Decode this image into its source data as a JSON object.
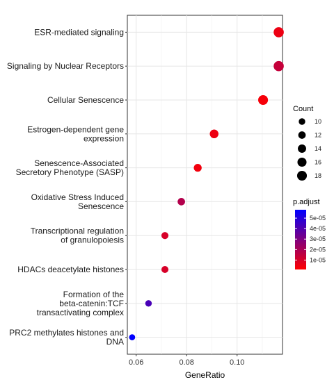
{
  "chart_data": {
    "type": "scatter",
    "xlabel": "GeneRatio",
    "xlim": [
      0.0565,
      0.118
    ],
    "xticks": [
      0.06,
      0.08,
      0.1
    ],
    "xtick_labels": [
      "0.06",
      "0.08",
      "0.10"
    ],
    "grid": true,
    "legend_position": "right",
    "categories": [
      {
        "lines": [
          "ESR-mediated signaling"
        ],
        "x": 0.1165,
        "count": 19,
        "p_adjust": 5e-06
      },
      {
        "lines": [
          "Signaling by Nuclear Receptors"
        ],
        "x": 0.1165,
        "count": 19,
        "p_adjust": 1.4e-05
      },
      {
        "lines": [
          "Cellular Senescence"
        ],
        "x": 0.1103,
        "count": 18,
        "p_adjust": 3e-06
      },
      {
        "lines": [
          "Estrogen-dependent gene",
          "expression"
        ],
        "x": 0.0909,
        "count": 15,
        "p_adjust": 5e-06
      },
      {
        "lines": [
          "Senescence-Associated",
          "Secretory Phenotype (SASP)"
        ],
        "x": 0.0844,
        "count": 13,
        "p_adjust": 4e-06
      },
      {
        "lines": [
          "Oxidative Stress Induced",
          "Senescence"
        ],
        "x": 0.0779,
        "count": 12,
        "p_adjust": 1.8e-05
      },
      {
        "lines": [
          "Transcriptional regulation",
          "of granulopoiesis"
        ],
        "x": 0.0714,
        "count": 11,
        "p_adjust": 1e-05
      },
      {
        "lines": [
          "HDACs deacetylate histones"
        ],
        "x": 0.0714,
        "count": 11,
        "p_adjust": 1e-05
      },
      {
        "lines": [
          "Formation of the",
          "beta-catenin:TCF",
          "transactivating complex"
        ],
        "x": 0.0649,
        "count": 10,
        "p_adjust": 4.2e-05
      },
      {
        "lines": [
          "PRC2 methylates histones and",
          "DNA"
        ],
        "x": 0.0584,
        "count": 9,
        "p_adjust": 5.8e-05
      }
    ],
    "count_legend": {
      "title": "Count",
      "values": [
        10,
        12,
        14,
        16,
        18
      ],
      "labels": [
        "10",
        "12",
        "14",
        "16",
        "18"
      ]
    },
    "color_legend": {
      "title": "p.adjust",
      "ticks": [
        5e-05,
        4e-05,
        3e-05,
        2e-05,
        1e-05
      ],
      "labels": [
        "5e-05",
        "4e-05",
        "3e-05",
        "2e-05",
        "1e-05"
      ],
      "range": [
        1e-06,
        5.8e-05
      ],
      "low_color": "#ff0000",
      "high_color": "#0000ff"
    }
  }
}
